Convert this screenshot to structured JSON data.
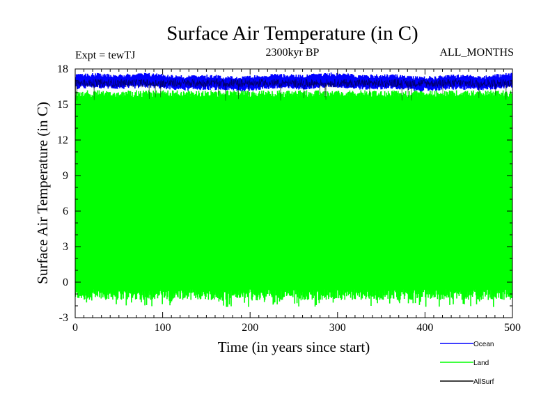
{
  "chart_data": {
    "type": "line",
    "title": "Surface Air Temperature (in C)",
    "subtitle": "2300kyr BP",
    "left_label": "Expt = tewTJ",
    "right_label": "ALL_MONTHS",
    "xlabel": "Time (in years since start)",
    "ylabel": "Surface Air Temperature (in C)",
    "xlim": [
      0,
      500
    ],
    "ylim": [
      -3,
      18
    ],
    "xticks": [
      0,
      100,
      200,
      300,
      400,
      500
    ],
    "yticks": [
      -3,
      0,
      3,
      6,
      9,
      12,
      15,
      18
    ],
    "legend_position": "bottom-right",
    "series": [
      {
        "name": "Ocean",
        "color": "#0000ff",
        "mean": 16.9,
        "min": 16.1,
        "max": 17.8
      },
      {
        "name": "Land",
        "color": "#00ff00",
        "mean": 7.5,
        "min": -2.2,
        "max": 16.6
      },
      {
        "name": "AllSurf",
        "color": "#000000",
        "mean": 16.8,
        "min": 11.2,
        "max": 17.6
      }
    ]
  }
}
